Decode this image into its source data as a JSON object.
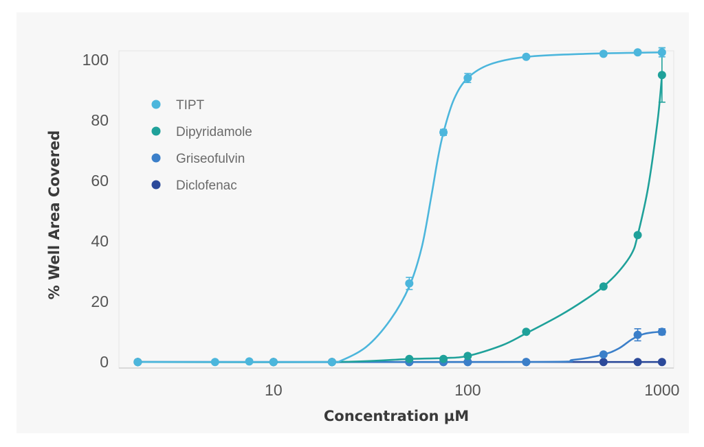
{
  "chart_data": {
    "type": "line",
    "x_scale": "log",
    "xlabel": "Concentration µM",
    "ylabel": "% Well Area Covered",
    "xlim": [
      1.6,
      1150
    ],
    "ylim": [
      -2,
      103
    ],
    "x_ticks": [
      {
        "value": 10,
        "label": "10"
      },
      {
        "value": 100,
        "label": "100"
      },
      {
        "value": 1000,
        "label": "1000"
      }
    ],
    "y_ticks": [
      {
        "value": 0,
        "label": "0"
      },
      {
        "value": 20,
        "label": "20"
      },
      {
        "value": 40,
        "label": "40"
      },
      {
        "value": 60,
        "label": "60"
      },
      {
        "value": 80,
        "label": "80"
      },
      {
        "value": 100,
        "label": "100"
      }
    ],
    "legend_position": "top-left",
    "series": [
      {
        "name": "TIPT",
        "color": "#4cb6dc",
        "x": [
          2,
          5,
          7.5,
          10,
          20,
          50,
          75,
          100,
          200,
          500,
          750,
          1000
        ],
        "y": [
          0,
          0,
          0.2,
          0,
          0,
          26,
          76,
          94,
          101,
          102,
          102.5,
          102.5
        ],
        "err": [
          0,
          0,
          0,
          0,
          0,
          2,
          1,
          1.5,
          0.5,
          0.5,
          0.5,
          1.5
        ],
        "fit": [
          [
            2,
            0
          ],
          [
            10,
            0
          ],
          [
            20,
            0
          ],
          [
            22,
            0.3
          ],
          [
            30,
            5
          ],
          [
            40,
            14
          ],
          [
            50,
            25
          ],
          [
            58,
            38
          ],
          [
            65,
            55
          ],
          [
            70,
            67
          ],
          [
            75,
            76
          ],
          [
            85,
            87
          ],
          [
            100,
            94
          ],
          [
            130,
            98.5
          ],
          [
            200,
            101
          ],
          [
            400,
            102
          ],
          [
            1000,
            102.5
          ]
        ]
      },
      {
        "name": "Dipyridamole",
        "color": "#1fa19a",
        "x": [
          2,
          10,
          20,
          50,
          75,
          100,
          200,
          500,
          750,
          1000
        ],
        "y": [
          0,
          0,
          0,
          1,
          1,
          2,
          10,
          25,
          42,
          95
        ],
        "err": [
          0,
          0,
          0,
          0,
          0,
          0.5,
          0.5,
          0.5,
          0.5,
          9
        ],
        "fit": [
          [
            2,
            0
          ],
          [
            20,
            0
          ],
          [
            50,
            1
          ],
          [
            75,
            1.3
          ],
          [
            100,
            2
          ],
          [
            150,
            5.5
          ],
          [
            200,
            9.5
          ],
          [
            300,
            15.5
          ],
          [
            400,
            20.5
          ],
          [
            500,
            25
          ],
          [
            600,
            30
          ],
          [
            700,
            36
          ],
          [
            750,
            42
          ],
          [
            850,
            58
          ],
          [
            950,
            80
          ],
          [
            1000,
            95
          ]
        ]
      },
      {
        "name": "Griseofulvin",
        "color": "#3b7fc9",
        "x": [
          2,
          10,
          20,
          50,
          75,
          100,
          200,
          500,
          750,
          1000
        ],
        "y": [
          0,
          0,
          0,
          0,
          0,
          0,
          0,
          2.5,
          9,
          10
        ],
        "err": [
          0,
          0,
          0,
          0,
          0,
          0,
          0,
          0.5,
          2,
          1
        ],
        "fit": [
          [
            2,
            0
          ],
          [
            200,
            0
          ],
          [
            350,
            0.7
          ],
          [
            500,
            2.5
          ],
          [
            600,
            4.5
          ],
          [
            700,
            7.5
          ],
          [
            800,
            9.2
          ],
          [
            900,
            9.8
          ],
          [
            1000,
            10
          ]
        ]
      },
      {
        "name": "Diclofenac",
        "color": "#2c4a9a",
        "x": [
          2,
          10,
          20,
          50,
          75,
          100,
          200,
          500,
          750,
          1000
        ],
        "y": [
          0,
          0,
          0,
          0,
          0,
          0,
          0,
          0,
          0,
          0
        ],
        "err": [
          0,
          0,
          0,
          0,
          0,
          0,
          0,
          0,
          0,
          0
        ],
        "fit": [
          [
            2,
            0
          ],
          [
            1000,
            0
          ]
        ]
      }
    ]
  }
}
